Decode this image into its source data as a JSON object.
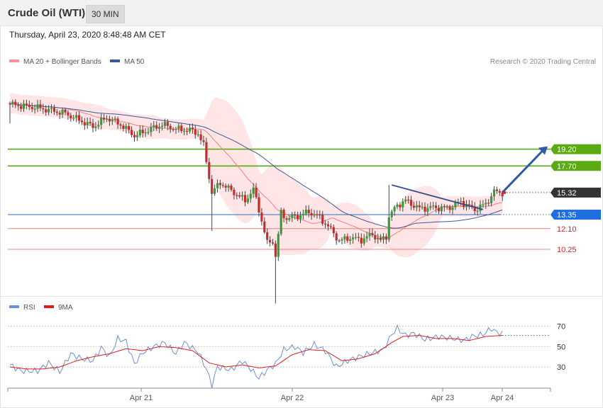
{
  "header": {
    "title": "Crude Oil (WTI)",
    "timeframe": "30 MIN",
    "datetime": "Thursday, April 23, 2020 8:48:48 AM CET"
  },
  "legend": {
    "ma20": "MA 20 + Bollinger Bands",
    "ma50": "MA 50",
    "credit": "Research © 2020 Trading Central"
  },
  "rsi_legend": {
    "rsi": "RSI",
    "ma9": "9MA"
  },
  "colors": {
    "bull": "#3a9a3a",
    "bear": "#cc2a2a",
    "ma20": "#f08080",
    "band": "#ffe0e0",
    "ma50": "#3b5998",
    "green_level": "#5aaa12",
    "red_level": "#e88080",
    "blue_level": "#2a6ebb",
    "current": "#333333",
    "arrow": "#2f5aa3",
    "rsi": "#6b8fd8",
    "rsi_ma": "#dd1c1c"
  },
  "chart_data": {
    "type": "candlestick",
    "title": "Crude Oil (WTI)",
    "timeframe": "30 MIN",
    "ylim": [
      5,
      25
    ],
    "x_ticks": [
      "Apr 21",
      "Apr 22",
      "Apr 23",
      "Apr 24"
    ],
    "levels": [
      {
        "value": 19.2,
        "label": "19.20",
        "kind": "resistance"
      },
      {
        "value": 17.7,
        "label": "17.70",
        "kind": "resistance"
      },
      {
        "value": 15.32,
        "label": "15.32",
        "kind": "current"
      },
      {
        "value": 13.35,
        "label": "13.35",
        "kind": "pivot"
      },
      {
        "value": 12.1,
        "label": "12.10",
        "kind": "support"
      },
      {
        "value": 10.25,
        "label": "10.25",
        "kind": "support"
      }
    ],
    "price_keys": [
      [
        0,
        23.2
      ],
      [
        10,
        22.9
      ],
      [
        20,
        22.4
      ],
      [
        30,
        21.2
      ],
      [
        35,
        22.0
      ],
      [
        40,
        21.4
      ],
      [
        45,
        20.4
      ],
      [
        50,
        20.9
      ],
      [
        55,
        21.4
      ],
      [
        60,
        21.0
      ],
      [
        65,
        20.9
      ],
      [
        68,
        20.6
      ],
      [
        70,
        19.5
      ],
      [
        73,
        15.3
      ],
      [
        76,
        16.2
      ],
      [
        80,
        15.5
      ],
      [
        85,
        14.6
      ],
      [
        88,
        15.6
      ],
      [
        90,
        13.8
      ],
      [
        93,
        10.8
      ],
      [
        95,
        11.0
      ],
      [
        96,
        9.6
      ],
      [
        98,
        13.5
      ],
      [
        100,
        13.0
      ],
      [
        105,
        13.3
      ],
      [
        108,
        13.6
      ],
      [
        112,
        13.1
      ],
      [
        116,
        12.0
      ],
      [
        119,
        11.0
      ],
      [
        123,
        11.3
      ],
      [
        127,
        11.1
      ],
      [
        131,
        11.6
      ],
      [
        134,
        11.0
      ],
      [
        136,
        11.4
      ],
      [
        137,
        13.2
      ],
      [
        140,
        14.2
      ],
      [
        143,
        14.6
      ],
      [
        148,
        13.9
      ],
      [
        153,
        14.0
      ],
      [
        158,
        13.9
      ],
      [
        163,
        14.5
      ],
      [
        168,
        13.8
      ],
      [
        172,
        14.3
      ],
      [
        175,
        15.4
      ],
      [
        178,
        15.3
      ]
    ],
    "rsi": {
      "ylim": [
        0,
        100
      ],
      "levels": [
        70,
        50,
        30
      ],
      "rsi_keys": [
        [
          0,
          32
        ],
        [
          4,
          26
        ],
        [
          10,
          26
        ],
        [
          14,
          34
        ],
        [
          18,
          25
        ],
        [
          22,
          43
        ],
        [
          26,
          38
        ],
        [
          30,
          36
        ],
        [
          33,
          49
        ],
        [
          36,
          40
        ],
        [
          39,
          58
        ],
        [
          42,
          55
        ],
        [
          45,
          33
        ],
        [
          48,
          44
        ],
        [
          52,
          50
        ],
        [
          56,
          54
        ],
        [
          60,
          43
        ],
        [
          63,
          54
        ],
        [
          68,
          45
        ],
        [
          71,
          28
        ],
        [
          73,
          12
        ],
        [
          75,
          30
        ],
        [
          80,
          27
        ],
        [
          84,
          36
        ],
        [
          87,
          28
        ],
        [
          90,
          19
        ],
        [
          93,
          27
        ],
        [
          96,
          33
        ],
        [
          99,
          47
        ],
        [
          103,
          50
        ],
        [
          106,
          44
        ],
        [
          110,
          52
        ],
        [
          114,
          46
        ],
        [
          118,
          30
        ],
        [
          122,
          36
        ],
        [
          126,
          40
        ],
        [
          131,
          44
        ],
        [
          135,
          47
        ],
        [
          138,
          62
        ],
        [
          140,
          68
        ],
        [
          143,
          61
        ],
        [
          146,
          63
        ],
        [
          150,
          57
        ],
        [
          155,
          60
        ],
        [
          160,
          58
        ],
        [
          164,
          56
        ],
        [
          167,
          60
        ],
        [
          171,
          62
        ],
        [
          174,
          68
        ],
        [
          176,
          64
        ],
        [
          178,
          63
        ]
      ],
      "ma_keys": [
        [
          0,
          30
        ],
        [
          6,
          28
        ],
        [
          12,
          28
        ],
        [
          18,
          30
        ],
        [
          24,
          36
        ],
        [
          30,
          40
        ],
        [
          36,
          43
        ],
        [
          42,
          48
        ],
        [
          48,
          46
        ],
        [
          54,
          50
        ],
        [
          60,
          49
        ],
        [
          66,
          46
        ],
        [
          72,
          34
        ],
        [
          78,
          30
        ],
        [
          84,
          32
        ],
        [
          90,
          29
        ],
        [
          96,
          31
        ],
        [
          102,
          42
        ],
        [
          108,
          47
        ],
        [
          114,
          46
        ],
        [
          120,
          36
        ],
        [
          126,
          38
        ],
        [
          132,
          43
        ],
        [
          138,
          54
        ],
        [
          142,
          60
        ],
        [
          148,
          61
        ],
        [
          154,
          58
        ],
        [
          160,
          58
        ],
        [
          166,
          56
        ],
        [
          172,
          60
        ],
        [
          178,
          61
        ]
      ]
    }
  }
}
